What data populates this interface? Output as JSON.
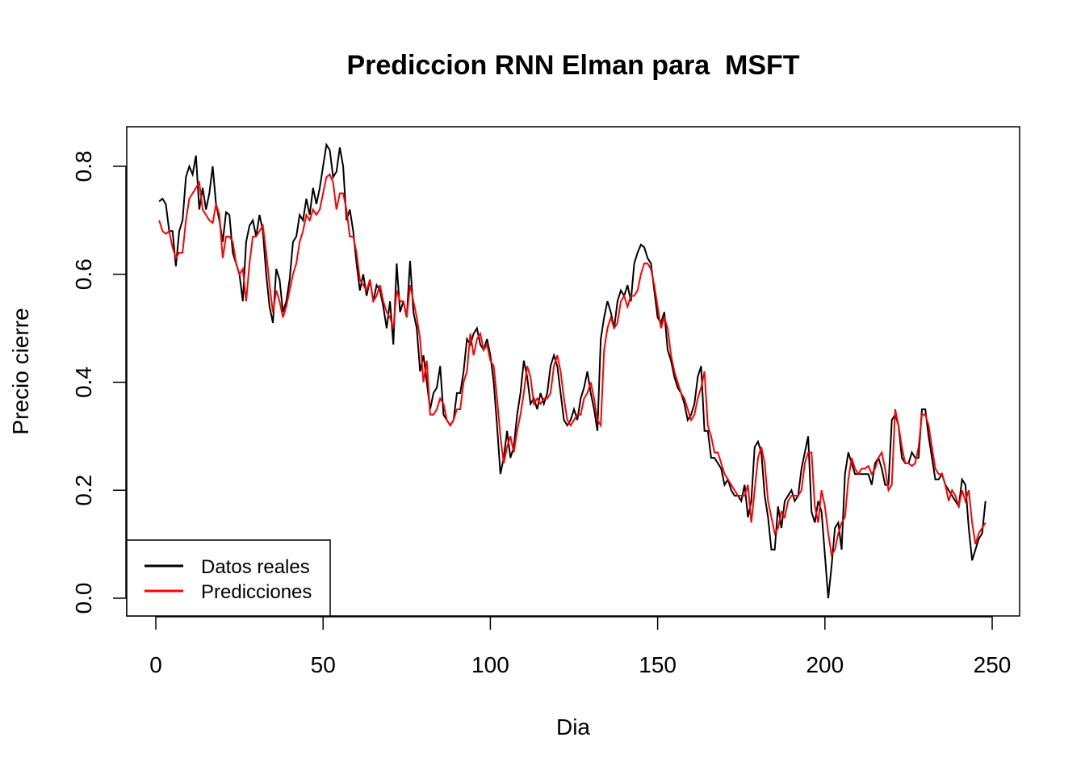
{
  "chart_data": {
    "type": "line",
    "title": "Prediccion RNN Elman para  MSFT",
    "x_label": "Dia",
    "y_label": "Precio cierre",
    "x": [
      1,
      2,
      3,
      4,
      5,
      6,
      7,
      8,
      9,
      10,
      11,
      12,
      13,
      14,
      15,
      16,
      17,
      18,
      19,
      20,
      21,
      22,
      23,
      24,
      25,
      26,
      27,
      28,
      29,
      30,
      31,
      32,
      33,
      34,
      35,
      36,
      37,
      38,
      39,
      40,
      41,
      42,
      43,
      44,
      45,
      46,
      47,
      48,
      49,
      50,
      51,
      52,
      53,
      54,
      55,
      56,
      57,
      58,
      59,
      60,
      61,
      62,
      63,
      64,
      65,
      66,
      67,
      68,
      69,
      70,
      71,
      72,
      73,
      74,
      75,
      76,
      77,
      78,
      79,
      80,
      81,
      82,
      83,
      84,
      85,
      86,
      87,
      88,
      89,
      90,
      91,
      92,
      93,
      94,
      95,
      96,
      97,
      98,
      99,
      100,
      101,
      102,
      103,
      104,
      105,
      106,
      107,
      108,
      109,
      110,
      111,
      112,
      113,
      114,
      115,
      116,
      117,
      118,
      119,
      120,
      121,
      122,
      123,
      124,
      125,
      126,
      127,
      128,
      129,
      130,
      131,
      132,
      133,
      134,
      135,
      136,
      137,
      138,
      139,
      140,
      141,
      142,
      143,
      144,
      145,
      146,
      147,
      148,
      149,
      150,
      151,
      152,
      153,
      154,
      155,
      156,
      157,
      158,
      159,
      160,
      161,
      162,
      163,
      164,
      165,
      166,
      167,
      168,
      169,
      170,
      171,
      172,
      173,
      174,
      175,
      176,
      177,
      178,
      179,
      180,
      181,
      182,
      183,
      184,
      185,
      186,
      187,
      188,
      189,
      190,
      191,
      192,
      193,
      194,
      195,
      196,
      197,
      198,
      199,
      200,
      201,
      202,
      203,
      204,
      205,
      206,
      207,
      208,
      209,
      210,
      211,
      212,
      213,
      214,
      215,
      216,
      217,
      218,
      219,
      220,
      221,
      222,
      223,
      224,
      225,
      226,
      227,
      228,
      229,
      230,
      231,
      232,
      233,
      234,
      235,
      236,
      237,
      238,
      239,
      240,
      241,
      242,
      243,
      244,
      245,
      246,
      247,
      248
    ],
    "series": [
      {
        "name": "Datos reales",
        "color": "#000000",
        "values": [
          0.735,
          0.74,
          0.73,
          0.68,
          0.68,
          0.615,
          0.68,
          0.7,
          0.78,
          0.8,
          0.785,
          0.82,
          0.72,
          0.76,
          0.72,
          0.75,
          0.8,
          0.73,
          0.7,
          0.66,
          0.715,
          0.71,
          0.64,
          0.62,
          0.6,
          0.55,
          0.66,
          0.69,
          0.7,
          0.67,
          0.71,
          0.68,
          0.6,
          0.54,
          0.51,
          0.61,
          0.59,
          0.53,
          0.55,
          0.59,
          0.66,
          0.67,
          0.71,
          0.7,
          0.74,
          0.71,
          0.76,
          0.73,
          0.76,
          0.8,
          0.84,
          0.83,
          0.78,
          0.79,
          0.835,
          0.8,
          0.7,
          0.72,
          0.68,
          0.62,
          0.57,
          0.6,
          0.56,
          0.59,
          0.55,
          0.58,
          0.57,
          0.54,
          0.5,
          0.55,
          0.47,
          0.62,
          0.53,
          0.55,
          0.52,
          0.625,
          0.53,
          0.5,
          0.42,
          0.45,
          0.4,
          0.35,
          0.38,
          0.39,
          0.43,
          0.34,
          0.33,
          0.32,
          0.33,
          0.38,
          0.38,
          0.42,
          0.48,
          0.47,
          0.49,
          0.5,
          0.47,
          0.46,
          0.48,
          0.45,
          0.4,
          0.32,
          0.23,
          0.26,
          0.31,
          0.26,
          0.28,
          0.34,
          0.38,
          0.44,
          0.41,
          0.36,
          0.37,
          0.35,
          0.38,
          0.36,
          0.38,
          0.43,
          0.45,
          0.43,
          0.38,
          0.33,
          0.32,
          0.33,
          0.35,
          0.33,
          0.37,
          0.39,
          0.42,
          0.38,
          0.35,
          0.31,
          0.48,
          0.52,
          0.55,
          0.53,
          0.5,
          0.55,
          0.57,
          0.56,
          0.58,
          0.55,
          0.62,
          0.64,
          0.655,
          0.65,
          0.63,
          0.62,
          0.57,
          0.52,
          0.51,
          0.53,
          0.46,
          0.44,
          0.41,
          0.39,
          0.38,
          0.36,
          0.33,
          0.34,
          0.36,
          0.41,
          0.43,
          0.31,
          0.31,
          0.26,
          0.26,
          0.25,
          0.24,
          0.21,
          0.22,
          0.2,
          0.19,
          0.19,
          0.18,
          0.21,
          0.15,
          0.18,
          0.28,
          0.29,
          0.27,
          0.19,
          0.15,
          0.09,
          0.09,
          0.17,
          0.13,
          0.18,
          0.19,
          0.2,
          0.18,
          0.19,
          0.24,
          0.27,
          0.3,
          0.16,
          0.14,
          0.18,
          0.16,
          0.08,
          0.0,
          0.06,
          0.13,
          0.14,
          0.09,
          0.23,
          0.27,
          0.25,
          0.23,
          0.23,
          0.23,
          0.23,
          0.23,
          0.21,
          0.25,
          0.26,
          0.24,
          0.21,
          0.21,
          0.33,
          0.34,
          0.32,
          0.26,
          0.25,
          0.25,
          0.27,
          0.26,
          0.26,
          0.35,
          0.35,
          0.3,
          0.26,
          0.22,
          0.22,
          0.23,
          0.21,
          0.2,
          0.19,
          0.18,
          0.17,
          0.22,
          0.21,
          0.13,
          0.07,
          0.09,
          0.11,
          0.12,
          0.18
        ]
      },
      {
        "name": "Predicciones",
        "color": "#ff0000",
        "values": [
          0.7,
          0.68,
          0.675,
          0.68,
          0.65,
          0.63,
          0.64,
          0.64,
          0.7,
          0.74,
          0.75,
          0.76,
          0.77,
          0.72,
          0.71,
          0.7,
          0.695,
          0.73,
          0.71,
          0.63,
          0.67,
          0.67,
          0.66,
          0.62,
          0.6,
          0.61,
          0.55,
          0.62,
          0.67,
          0.67,
          0.68,
          0.69,
          0.64,
          0.58,
          0.53,
          0.57,
          0.55,
          0.52,
          0.54,
          0.57,
          0.6,
          0.62,
          0.66,
          0.68,
          0.71,
          0.7,
          0.72,
          0.71,
          0.72,
          0.75,
          0.78,
          0.785,
          0.77,
          0.72,
          0.75,
          0.75,
          0.72,
          0.67,
          0.67,
          0.64,
          0.59,
          0.58,
          0.57,
          0.59,
          0.55,
          0.56,
          0.58,
          0.55,
          0.53,
          0.52,
          0.5,
          0.57,
          0.55,
          0.55,
          0.52,
          0.58,
          0.55,
          0.52,
          0.48,
          0.4,
          0.44,
          0.34,
          0.34,
          0.35,
          0.37,
          0.36,
          0.33,
          0.32,
          0.33,
          0.35,
          0.35,
          0.4,
          0.42,
          0.49,
          0.45,
          0.48,
          0.49,
          0.46,
          0.47,
          0.44,
          0.43,
          0.37,
          0.3,
          0.25,
          0.28,
          0.3,
          0.27,
          0.31,
          0.34,
          0.38,
          0.43,
          0.41,
          0.36,
          0.37,
          0.36,
          0.37,
          0.37,
          0.38,
          0.43,
          0.45,
          0.42,
          0.37,
          0.33,
          0.32,
          0.33,
          0.34,
          0.34,
          0.37,
          0.38,
          0.4,
          0.37,
          0.33,
          0.32,
          0.46,
          0.5,
          0.52,
          0.5,
          0.51,
          0.55,
          0.56,
          0.54,
          0.56,
          0.56,
          0.57,
          0.6,
          0.62,
          0.62,
          0.61,
          0.58,
          0.54,
          0.5,
          0.52,
          0.5,
          0.45,
          0.42,
          0.4,
          0.38,
          0.37,
          0.35,
          0.33,
          0.34,
          0.37,
          0.39,
          0.42,
          0.32,
          0.3,
          0.27,
          0.27,
          0.25,
          0.23,
          0.22,
          0.21,
          0.2,
          0.19,
          0.19,
          0.19,
          0.21,
          0.14,
          0.2,
          0.26,
          0.28,
          0.25,
          0.18,
          0.15,
          0.12,
          0.13,
          0.16,
          0.15,
          0.18,
          0.19,
          0.19,
          0.19,
          0.2,
          0.25,
          0.27,
          0.27,
          0.17,
          0.14,
          0.2,
          0.17,
          0.12,
          0.08,
          0.09,
          0.12,
          0.14,
          0.15,
          0.22,
          0.26,
          0.24,
          0.23,
          0.24,
          0.24,
          0.245,
          0.23,
          0.24,
          0.26,
          0.27,
          0.24,
          0.2,
          0.21,
          0.35,
          0.32,
          0.28,
          0.25,
          0.25,
          0.245,
          0.25,
          0.28,
          0.34,
          0.34,
          0.32,
          0.28,
          0.24,
          0.23,
          0.23,
          0.21,
          0.18,
          0.2,
          0.19,
          0.17,
          0.2,
          0.18,
          0.2,
          0.14,
          0.1,
          0.12,
          0.13,
          0.14
        ]
      }
    ],
    "xlim": [
      -8.69,
      258.2
    ],
    "ylim": [
      -0.0329,
      0.8733
    ],
    "xticks": [
      0,
      50,
      100,
      150,
      200,
      250
    ],
    "yticks": [
      {
        "value": 0,
        "label": "0.0"
      },
      0.2,
      0.4,
      0.6,
      0.8
    ],
    "legend_position": "bottom-left"
  }
}
